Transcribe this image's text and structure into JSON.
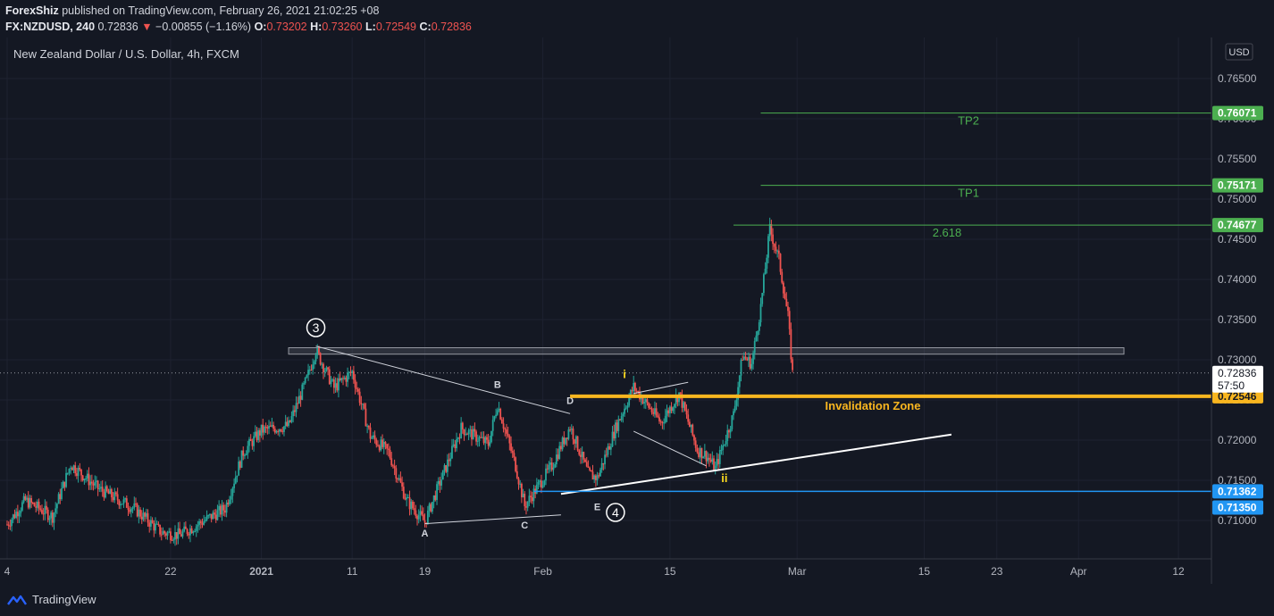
{
  "header": {
    "author": "ForexShiz",
    "published": "published on TradingView.com, February 26, 2021 21:02:25 +08",
    "symbol": "FX:NZDUSD, 240",
    "last": "0.72836",
    "change": "−0.00855 (−1.16%)",
    "o_label": "O:",
    "o_val": "0.73202",
    "h_label": "H:",
    "h_val": "0.73260",
    "l_label": "L:",
    "l_val": "0.72549",
    "c_label": "C:",
    "c_val": "0.72836"
  },
  "chart_title": "New Zealand Dollar / U.S. Dollar, 4h, FXCM",
  "currency_button": "USD",
  "footer": {
    "brand": "TradingView"
  },
  "colors": {
    "background": "#141823",
    "up": "#26a69a",
    "down": "#ef5350",
    "target_line": "#4caf50",
    "invalidation": "#f9b61f",
    "support": "#2196f3"
  },
  "chart_data": {
    "type": "candlestick",
    "symbol": "NZDUSD",
    "timeframe": "4h",
    "y_ticks": [
      0.765,
      0.76,
      0.755,
      0.75,
      0.745,
      0.74,
      0.735,
      0.73,
      0.725,
      0.72,
      0.715,
      0.71
    ],
    "y_tick_labels": [
      "0.76500",
      "0.76000",
      "0.75500",
      "0.75000",
      "0.74500",
      "0.74000",
      "0.73500",
      "0.73000",
      "0.72500",
      "0.72000",
      "0.71500",
      "0.71000"
    ],
    "x_ticks": [
      {
        "label": "4",
        "date": "2020-12-04"
      },
      {
        "label": "22",
        "date": "2020-12-22"
      },
      {
        "label": "2021",
        "date": "2021-01-01"
      },
      {
        "label": "11",
        "date": "2021-01-11"
      },
      {
        "label": "19",
        "date": "2021-01-19"
      },
      {
        "label": "Feb",
        "date": "2021-02-01"
      },
      {
        "label": "15",
        "date": "2021-02-15"
      },
      {
        "label": "Mar",
        "date": "2021-03-01"
      },
      {
        "label": "15",
        "date": "2021-03-15"
      },
      {
        "label": "23",
        "date": "2021-03-23"
      },
      {
        "label": "Apr",
        "date": "2021-04-01"
      },
      {
        "label": "12",
        "date": "2021-04-12"
      }
    ],
    "price_path": [
      [
        "2020-12-04",
        0.7095
      ],
      [
        "2020-12-06",
        0.7125
      ],
      [
        "2020-12-09",
        0.7105
      ],
      [
        "2020-12-11",
        0.717
      ],
      [
        "2020-12-14",
        0.714
      ],
      [
        "2020-12-18",
        0.7115
      ],
      [
        "2020-12-21",
        0.7085
      ],
      [
        "2020-12-23",
        0.7082
      ],
      [
        "2020-12-28",
        0.7115
      ],
      [
        "2020-12-30",
        0.7185
      ],
      [
        "2021-01-01",
        0.7212
      ],
      [
        "2021-01-04",
        0.7218
      ],
      [
        "2021-01-06",
        0.7276
      ],
      [
        "2021-01-07",
        0.7312
      ],
      [
        "2021-01-09",
        0.7265
      ],
      [
        "2021-01-11",
        0.7285
      ],
      [
        "2021-01-13",
        0.7205
      ],
      [
        "2021-01-15",
        0.7185
      ],
      [
        "2021-01-17",
        0.7125
      ],
      [
        "2021-01-19",
        0.7098
      ],
      [
        "2021-01-20",
        0.7128
      ],
      [
        "2021-01-23",
        0.7215
      ],
      [
        "2021-01-26",
        0.7195
      ],
      [
        "2021-01-27",
        0.7245
      ],
      [
        "2021-01-29",
        0.7168
      ],
      [
        "2021-01-30",
        0.7118
      ],
      [
        "2021-02-02",
        0.7168
      ],
      [
        "2021-02-04",
        0.7217
      ],
      [
        "2021-02-06",
        0.7158
      ],
      [
        "2021-02-07",
        0.7153
      ],
      [
        "2021-02-09",
        0.7215
      ],
      [
        "2021-02-11",
        0.7266
      ],
      [
        "2021-02-14",
        0.7222
      ],
      [
        "2021-02-16",
        0.7258
      ],
      [
        "2021-02-18",
        0.7188
      ],
      [
        "2021-02-19",
        0.7181
      ],
      [
        "2021-02-20",
        0.7165
      ],
      [
        "2021-02-22",
        0.7232
      ],
      [
        "2021-02-23",
        0.7305
      ],
      [
        "2021-02-24",
        0.7295
      ],
      [
        "2021-02-25",
        0.7366
      ],
      [
        "2021-02-26",
        0.7463
      ],
      [
        "2021-02-27",
        0.7425
      ],
      [
        "2021-02-28",
        0.7354
      ],
      [
        "2021-02-28T12:00",
        0.7283
      ]
    ],
    "last_price": {
      "value": 0.72836,
      "label": "0.72836",
      "countdown": "57:50"
    },
    "horizontal_levels": [
      {
        "name": "TP2",
        "text": "TP2",
        "price": 0.76071,
        "label": "0.76071",
        "color": "#4caf50",
        "from": "2021-02-25"
      },
      {
        "name": "TP1",
        "text": "TP1",
        "price": 0.75171,
        "label": "0.75171",
        "color": "#4caf50",
        "from": "2021-02-25"
      },
      {
        "name": "fib-2.618",
        "text": "2.618",
        "price": 0.74677,
        "label": "0.74677",
        "color": "#4caf50",
        "from": "2021-02-22"
      },
      {
        "name": "invalidation-zone",
        "text": "Invalidation Zone",
        "price": 0.72546,
        "label": "0.72546",
        "color": "#f9b61f",
        "from": "2021-02-04"
      },
      {
        "name": "support-1",
        "text": "",
        "price": 0.71362,
        "label": "0.71362",
        "color": "#2196f3",
        "from": "2021-01-31"
      },
      {
        "name": "support-2",
        "text": "",
        "price": 0.7135,
        "label": "0.71350",
        "color": "#2196f3",
        "from": ""
      }
    ],
    "resistance_box": {
      "from": "2021-01-04",
      "to": "2021-04-06",
      "low": 0.7307,
      "high": 0.7315
    },
    "trendline": {
      "from": [
        "2021-02-03",
        0.7133
      ],
      "to": [
        "2021-03-18",
        0.7207
      ]
    },
    "wave_labels": [
      {
        "text": "3",
        "date": "2021-01-07",
        "price": 0.734,
        "style": "circle"
      },
      {
        "text": "4",
        "date": "2021-02-09",
        "price": 0.711,
        "style": "circle"
      },
      {
        "text": "A",
        "date": "2021-01-19",
        "price": 0.708,
        "style": "small"
      },
      {
        "text": "B",
        "date": "2021-01-27",
        "price": 0.7265,
        "style": "small"
      },
      {
        "text": "C",
        "date": "2021-01-30",
        "price": 0.709,
        "style": "small"
      },
      {
        "text": "D",
        "date": "2021-02-04",
        "price": 0.7245,
        "style": "small"
      },
      {
        "text": "E",
        "date": "2021-02-07",
        "price": 0.7113,
        "style": "small"
      },
      {
        "text": "i",
        "date": "2021-02-10",
        "price": 0.7277,
        "style": "yellow"
      },
      {
        "text": "ii",
        "date": "2021-02-21",
        "price": 0.7148,
        "style": "yellow"
      }
    ],
    "annotation_lines": [
      {
        "from": [
          "2021-01-07",
          0.7317
        ],
        "to": [
          "2021-02-04",
          0.7233
        ]
      },
      {
        "from": [
          "2021-01-19",
          0.7096
        ],
        "to": [
          "2021-02-03",
          0.7107
        ]
      },
      {
        "from": [
          "2021-02-11",
          0.7258
        ],
        "to": [
          "2021-02-17",
          0.7272
        ]
      },
      {
        "from": [
          "2021-02-11",
          0.7211
        ],
        "to": [
          "2021-02-19",
          0.7168
        ]
      }
    ],
    "grid": true
  }
}
